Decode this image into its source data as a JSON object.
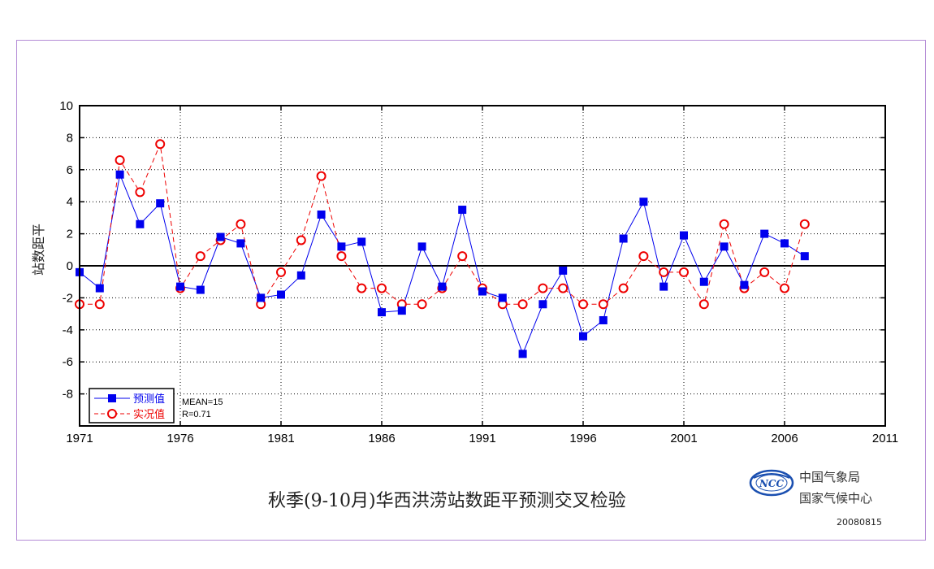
{
  "chart_data": {
    "type": "line",
    "title": "秋季(9-10月)华西洪涝站数距平预测交叉检验",
    "ylabel": "站数距平",
    "xlabel": "",
    "xlim": [
      1971,
      2011
    ],
    "ylim": [
      -10,
      10
    ],
    "x_ticks": [
      "1971",
      "1976",
      "1981",
      "1986",
      "1991",
      "1996",
      "2001",
      "2006",
      "2011"
    ],
    "y_ticks": [
      "10",
      "8",
      "6",
      "4",
      "2",
      "0",
      "-2",
      "-4",
      "-6",
      "-8"
    ],
    "grid": true,
    "legend_position": "bottom-left",
    "x": [
      1971,
      1972,
      1973,
      1974,
      1975,
      1976,
      1977,
      1978,
      1979,
      1980,
      1981,
      1982,
      1983,
      1984,
      1985,
      1986,
      1987,
      1988,
      1989,
      1990,
      1991,
      1992,
      1993,
      1994,
      1995,
      1996,
      1997,
      1998,
      1999,
      2000,
      2001,
      2002,
      2003,
      2004,
      2005,
      2006,
      2007
    ],
    "series": [
      {
        "name": "预测值",
        "color": "#0000ee",
        "marker": "square",
        "line_style": "solid",
        "values": [
          -0.4,
          -1.4,
          5.7,
          2.6,
          3.9,
          -1.3,
          -1.5,
          1.8,
          1.4,
          -2.0,
          -1.8,
          -0.6,
          3.2,
          1.2,
          1.5,
          -2.9,
          -2.8,
          1.2,
          -1.3,
          3.5,
          -1.6,
          -2.0,
          -5.5,
          -2.4,
          -0.3,
          -4.4,
          -3.4,
          1.7,
          4.0,
          -1.3,
          1.9,
          -1.0,
          1.2,
          -1.2,
          2.0,
          1.4,
          0.6
        ]
      },
      {
        "name": "实况值",
        "color": "#ee0000",
        "marker": "circle",
        "line_style": "dashed",
        "values": [
          -2.4,
          -2.4,
          6.6,
          4.6,
          7.6,
          -1.4,
          0.6,
          1.6,
          2.6,
          -2.4,
          -0.4,
          1.6,
          5.6,
          0.6,
          -1.4,
          -1.4,
          -2.4,
          -2.4,
          -1.4,
          0.6,
          -1.4,
          -2.4,
          -2.4,
          -1.4,
          -1.4,
          -2.4,
          -2.4,
          -1.4,
          0.6,
          -0.4,
          -0.4,
          -2.4,
          2.6,
          -1.4,
          -0.4,
          -1.4,
          2.6
        ]
      }
    ],
    "annotations": [
      "MEAN=15",
      "R=0.71"
    ]
  },
  "footer": {
    "org_line1": "中国气象局",
    "org_line2": "国家气候中心",
    "date": "20080815",
    "logo_text": "NCC"
  }
}
